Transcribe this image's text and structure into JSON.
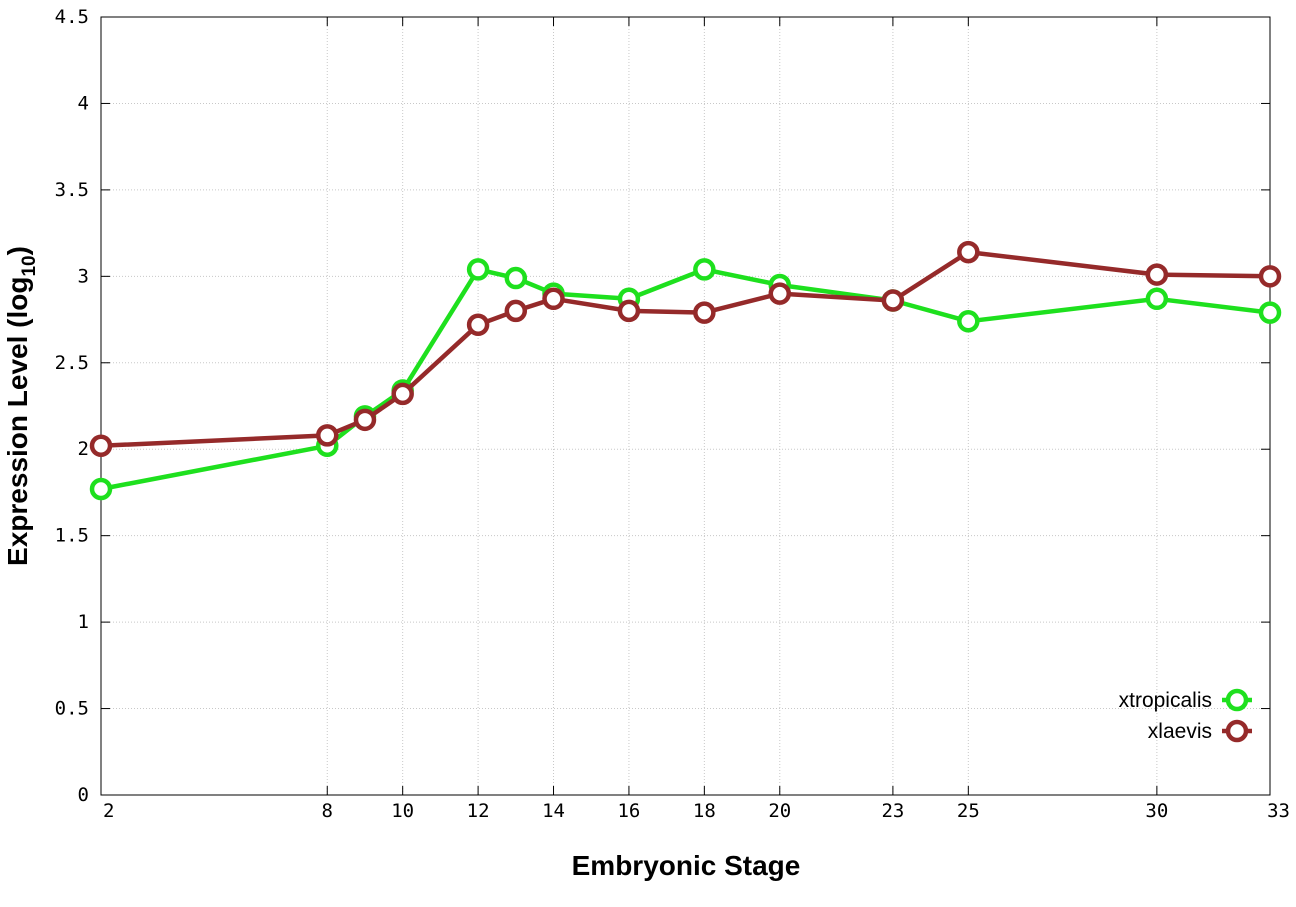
{
  "chart_data": {
    "type": "line",
    "title": "",
    "xlabel": "Embryonic Stage",
    "ylabel": {
      "main": "Expression Level (log",
      "subscript": "10",
      "suffix": ")"
    },
    "x": [
      2,
      8,
      9,
      10,
      12,
      13,
      14,
      16,
      18,
      20,
      23,
      25,
      30,
      33
    ],
    "x_ticks": [
      2,
      8,
      10,
      12,
      14,
      16,
      18,
      20,
      23,
      25,
      30,
      33
    ],
    "y_ticks": [
      "0",
      "0.5",
      "1",
      "1.5",
      "2",
      "2.5",
      "3",
      "3.5",
      "4",
      "4.5"
    ],
    "xlim": [
      2,
      33
    ],
    "ylim": [
      0,
      4.5
    ],
    "grid": true,
    "legend_position": "bottom-right",
    "series": [
      {
        "name": "xtropicalis",
        "color": "#1ee01e",
        "values": [
          1.77,
          2.02,
          2.19,
          2.34,
          3.04,
          2.99,
          2.9,
          2.87,
          3.04,
          2.95,
          2.86,
          2.74,
          2.87,
          2.79
        ]
      },
      {
        "name": "xlaevis",
        "color": "#952a2a",
        "values": [
          2.02,
          2.08,
          2.17,
          2.32,
          2.72,
          2.8,
          2.87,
          2.8,
          2.79,
          2.9,
          2.86,
          3.14,
          3.01,
          3.0
        ]
      }
    ]
  }
}
